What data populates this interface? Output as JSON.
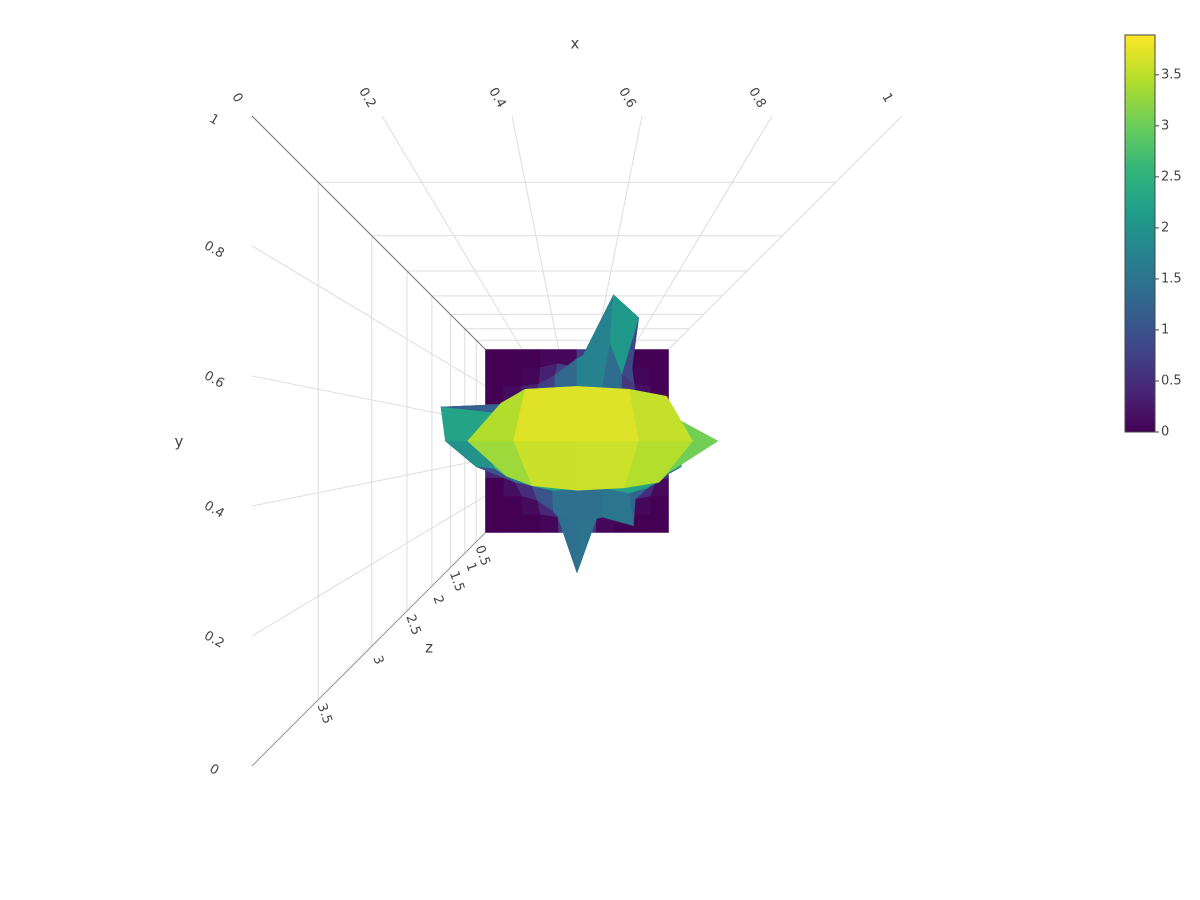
{
  "chart_data": {
    "type": "surface",
    "x_title": "x",
    "y_title": "y",
    "z_title": "z",
    "xlim": [
      0,
      1
    ],
    "ylim": [
      0,
      1
    ],
    "zlim": [
      0,
      3.89
    ],
    "xticks": [
      0,
      0.2,
      0.4,
      0.6,
      0.8,
      1
    ],
    "yticks": [
      0,
      0.2,
      0.4,
      0.6,
      0.8,
      1
    ],
    "zticks": [
      0.5,
      1,
      1.5,
      2,
      2.5,
      3,
      3.5
    ],
    "colorbar_ticks": [
      0,
      0.5,
      1,
      1.5,
      2,
      2.5,
      3,
      3.5
    ],
    "colorscale": [
      "#440154",
      "#482878",
      "#3e4989",
      "#31688e",
      "#26828e",
      "#1f9e89",
      "#35b779",
      "#6ece58",
      "#b5de2b",
      "#fde725"
    ],
    "x": [
      0,
      0.1,
      0.2,
      0.3,
      0.4,
      0.5,
      0.6,
      0.7,
      0.8,
      0.9,
      1
    ],
    "y": [
      0,
      0.1,
      0.2,
      0.3,
      0.4,
      0.5,
      0.6,
      0.7,
      0.8,
      0.9,
      1
    ],
    "z": [
      [
        0,
        0,
        0,
        0,
        0,
        0,
        0,
        0,
        0,
        0,
        0
      ],
      [
        0,
        0,
        0,
        0,
        0.2,
        2.4,
        0.3,
        0,
        0,
        0,
        0
      ],
      [
        0,
        0,
        0,
        0.4,
        1.2,
        1.8,
        1.5,
        1.9,
        0.3,
        0,
        0
      ],
      [
        0,
        0,
        0.6,
        1.0,
        1.4,
        1.3,
        1.1,
        1.6,
        1.2,
        0.4,
        0
      ],
      [
        0,
        1.5,
        1.8,
        2.6,
        3.2,
        3.4,
        3.3,
        3.0,
        2.2,
        1.6,
        0
      ],
      [
        0,
        2.4,
        2.2,
        3.6,
        3.85,
        3.89,
        3.8,
        3.7,
        3.3,
        1.8,
        0
      ],
      [
        0,
        2.5,
        1.9,
        2.8,
        3.5,
        3.6,
        3.5,
        3.2,
        2.0,
        1.4,
        0
      ],
      [
        0,
        0,
        0.4,
        0.8,
        1.0,
        1.5,
        1.2,
        0.9,
        0.5,
        0,
        0
      ],
      [
        0,
        0,
        0,
        0.2,
        0.9,
        1.8,
        2.4,
        1.0,
        0.2,
        0,
        0
      ],
      [
        0,
        0,
        0,
        0,
        0.3,
        0,
        2.7,
        2.2,
        0,
        0,
        0
      ],
      [
        0,
        0,
        0,
        0,
        0,
        0,
        0,
        0,
        0,
        0,
        0
      ]
    ]
  }
}
